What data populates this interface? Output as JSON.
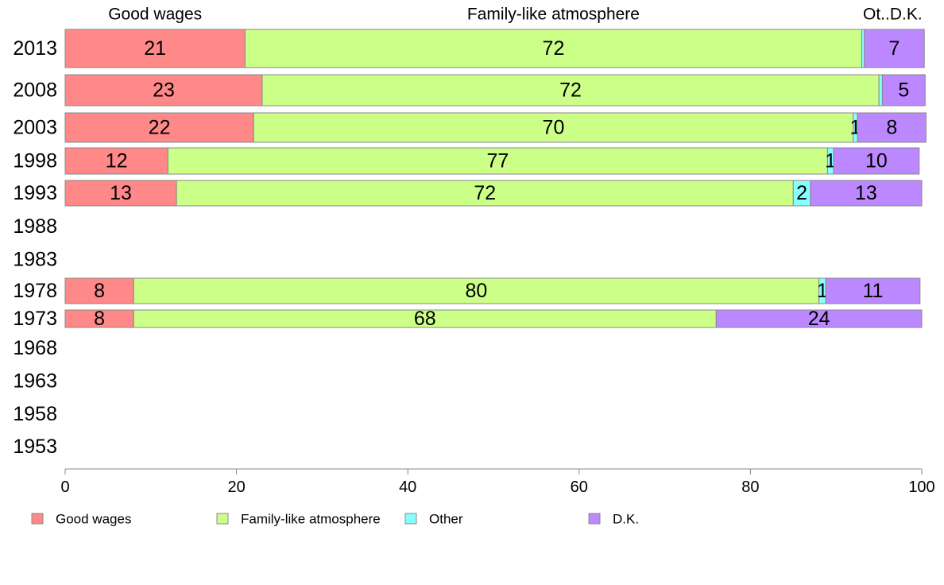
{
  "chart_data": {
    "type": "bar",
    "orientation": "horizontal",
    "stacked": true,
    "categories": [
      "2013",
      "2008",
      "2003",
      "1998",
      "1993",
      "1988",
      "1983",
      "1978",
      "1973",
      "1968",
      "1963",
      "1958",
      "1953"
    ],
    "series": [
      {
        "name": "Good wages",
        "color": "#ff8888",
        "values": [
          21,
          23,
          22,
          12,
          13,
          null,
          null,
          8,
          8,
          null,
          null,
          null,
          null
        ],
        "labels": [
          "21",
          "23",
          "22",
          "12",
          "13",
          "",
          "",
          "8",
          "8",
          "",
          "",
          "",
          ""
        ]
      },
      {
        "name": "Family-like atmosphere",
        "color": "#ccff88",
        "values": [
          72,
          72,
          70,
          77,
          72,
          null,
          null,
          80,
          68,
          null,
          null,
          null,
          null
        ],
        "labels": [
          "72",
          "72",
          "70",
          "77",
          "72",
          "",
          "",
          "80",
          "68",
          "",
          "",
          "",
          ""
        ]
      },
      {
        "name": "Other",
        "color": "#88ffff",
        "values": [
          0.3,
          0.4,
          0.5,
          0.7,
          2,
          null,
          null,
          0.8,
          0,
          null,
          null,
          null,
          null
        ],
        "labels": [
          "",
          "",
          "1",
          "1",
          "2",
          "",
          "",
          "1",
          "",
          "",
          "",
          "",
          ""
        ]
      },
      {
        "name": "D.K.",
        "color": "#bb88ff",
        "values": [
          7,
          5,
          8,
          10,
          13,
          null,
          null,
          11,
          24,
          null,
          null,
          null,
          null
        ],
        "labels": [
          "7",
          "5",
          "8",
          "10",
          "13",
          "",
          "",
          "11",
          "24",
          "",
          "",
          "",
          ""
        ]
      }
    ],
    "header_labels": [
      {
        "text": "Good wages",
        "center": 10.5
      },
      {
        "text": "Family-like atmosphere",
        "center": 57
      },
      {
        "text": "Ot..D.K.",
        "center": 96.6
      }
    ],
    "xlim": [
      0,
      100
    ],
    "xticks": [
      0,
      20,
      40,
      60,
      80,
      100
    ],
    "grid": false,
    "legend_position": "bottom",
    "title": "",
    "xlabel": "",
    "ylabel": ""
  }
}
